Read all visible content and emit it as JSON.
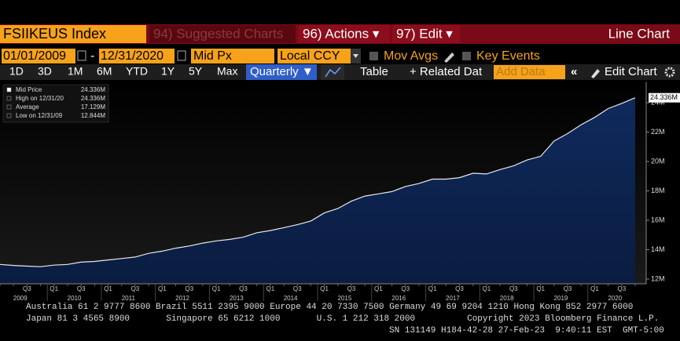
{
  "toolbar": {
    "ticker": "FSIIKEUS Index",
    "suggested": "94) Suggested Charts",
    "actions": "96) Actions ▾",
    "edit": "97) Edit ▾",
    "chart_type": "Line Chart"
  },
  "controls": {
    "start_date": "01/01/2009",
    "separator": "-",
    "end_date": "12/31/2020",
    "price_field": "Mid Px",
    "currency": "Local CCY",
    "mov_avgs": "Mov Avgs",
    "key_events": "Key Events"
  },
  "range_buttons": [
    "1D",
    "3D",
    "1M",
    "6M",
    "YTD",
    "1Y",
    "5Y",
    "Max"
  ],
  "period": "Quarterly ▼",
  "table": "Table",
  "related": "+ Related Dat",
  "add_data": "Add Data",
  "edit_chart": "Edit Chart",
  "legend": [
    {
      "label": "Mid Price",
      "value": "24.336M"
    },
    {
      "label": "High on 12/31/20",
      "value": "24.336M"
    },
    {
      "label": "Average",
      "value": "17.129M"
    },
    {
      "label": "Low on 12/31/09",
      "value": "12.844M"
    }
  ],
  "chart_data": {
    "type": "area",
    "color": "#e8e8e8",
    "categories": [
      null,
      null,
      "Q3",
      null,
      "Q1",
      null,
      "Q3",
      null,
      "Q1",
      null,
      "Q3",
      null,
      "Q1",
      null,
      "Q3",
      null,
      "Q1",
      null,
      "Q3",
      null,
      "Q1",
      null,
      "Q3",
      null,
      "Q1",
      null,
      "Q3",
      null,
      "Q1",
      null,
      "Q3",
      null,
      "Q1",
      null,
      "Q3",
      null,
      "Q1",
      null,
      "Q3",
      null,
      "Q1",
      null,
      "Q3",
      null,
      "Q1",
      null,
      "Q3",
      null
    ],
    "years": [
      "2009",
      "2010",
      "2011",
      "2012",
      "2013",
      "2014",
      "2015",
      "2016",
      "2017",
      "2018",
      "2019",
      "2020"
    ],
    "values": [
      13.0,
      12.93,
      12.88,
      12.844,
      12.95,
      13.0,
      13.15,
      13.2,
      13.3,
      13.4,
      13.5,
      13.75,
      13.9,
      14.1,
      14.25,
      14.45,
      14.6,
      14.7,
      14.85,
      15.15,
      15.3,
      15.5,
      15.7,
      15.95,
      16.5,
      16.8,
      17.3,
      17.65,
      17.8,
      17.95,
      18.3,
      18.5,
      18.8,
      18.8,
      18.9,
      19.2,
      19.15,
      19.45,
      19.7,
      20.1,
      20.35,
      21.4,
      21.9,
      22.5,
      23.0,
      23.6,
      23.95,
      24.336
    ],
    "value_labels": [
      null,
      null,
      null,
      null,
      null,
      null,
      null,
      null,
      null,
      null,
      null,
      null,
      null,
      null,
      null,
      null,
      null,
      null,
      null,
      null,
      null,
      null,
      null,
      null,
      null,
      null,
      null,
      null,
      null,
      null,
      null,
      null,
      null,
      null,
      null,
      null,
      null,
      null,
      null,
      null,
      null,
      null,
      null,
      null,
      null,
      null,
      null,
      "24.336M"
    ],
    "ylim": [
      11.68,
      25.12
    ],
    "yticks": [
      {
        "value": 12,
        "label": "12M"
      },
      {
        "value": 14,
        "label": "14M"
      },
      {
        "value": 16,
        "label": "16M"
      },
      {
        "value": 18,
        "label": "18M"
      },
      {
        "value": 20,
        "label": "20M"
      },
      {
        "value": 22,
        "label": "22M"
      },
      {
        "value": 24,
        "label": "24M"
      }
    ]
  },
  "footer": [
    "Australia 61 2 9777 8600 Brazil 5511 2395 9000 Europe 44 20 7330 7500 Germany 49 69 9204 1210 Hong Kong 852 2977 6000",
    "Japan 81 3 4565 8900       Singapore 65 6212 1000       U.S. 1 212 318 2000          Copyright 2023 Bloomberg Finance L.P.",
    "SN 131149 H184-42-28 27-Feb-23  9:40:11 EST  GMT-5:00"
  ]
}
